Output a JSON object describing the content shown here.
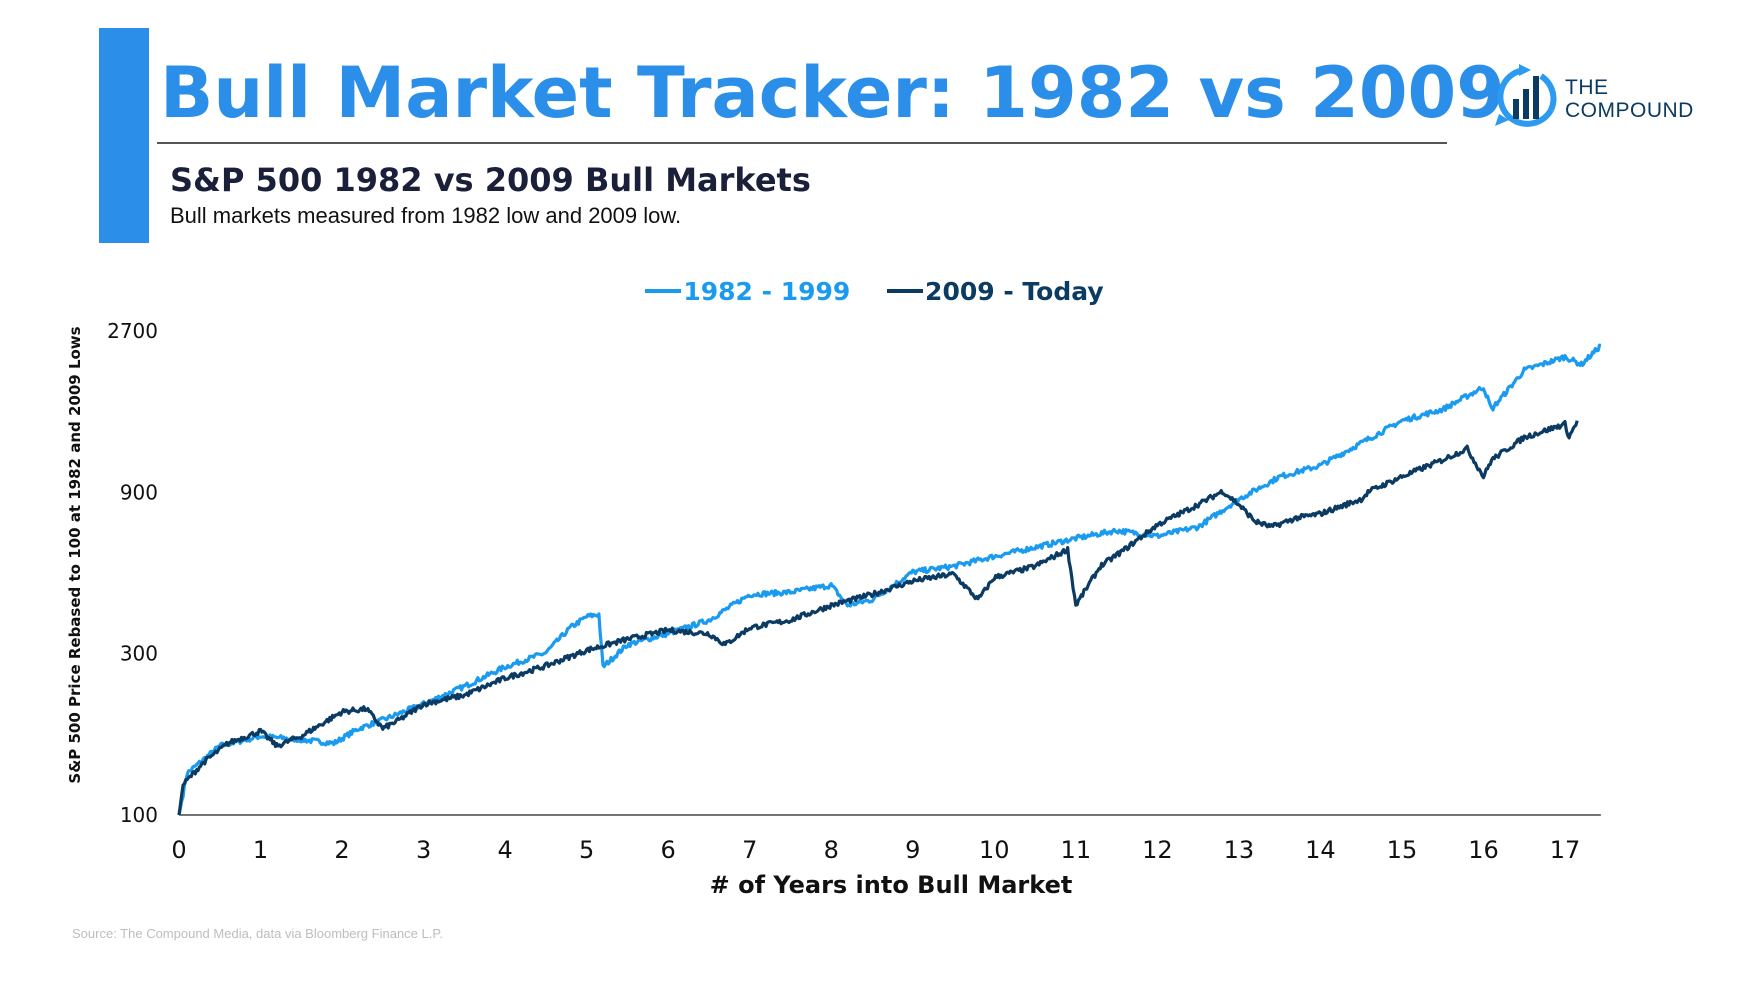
{
  "header": {
    "title": "Bull Market Tracker: 1982 vs 2009",
    "subtitle": "S&P 500 1982 vs 2009 Bull Markets",
    "description": "Bull markets measured from 1982 low and 2009 low.",
    "accent_color": "#2b8ee8"
  },
  "logo": {
    "line1": "THE",
    "line2": "COMPOUND",
    "icon": "chart-bars-circular-arrow-icon"
  },
  "footer": {
    "source": "Source: The Compound Media, data via Bloomberg Finance L.P."
  },
  "chart_data": {
    "type": "line",
    "title": "S&P 500 1982 vs 2009 Bull Markets",
    "xlabel": "# of Years into Bull Market",
    "ylabel": "S&P 500 Price Rebased to 100 at 1982 and 2009 Lows",
    "xlim": [
      0,
      17.44
    ],
    "ylim": [
      100,
      2700
    ],
    "yscale": "log",
    "x_ticks": [
      "0",
      "1",
      "2",
      "3",
      "4",
      "5",
      "6",
      "7",
      "8",
      "9",
      "10",
      "11",
      "12",
      "13",
      "14",
      "15",
      "16",
      "17"
    ],
    "y_ticks": [
      "100",
      "300",
      "900",
      "2700"
    ],
    "grid": false,
    "legend": "top-center",
    "series": [
      {
        "name": "1982 - 1999",
        "color": "#1a9bf0",
        "x": [
          0,
          0.1,
          0.5,
          1.0,
          1.5,
          1.9,
          2.2,
          2.5,
          3.0,
          3.5,
          4.0,
          4.5,
          4.8,
          5.0,
          5.15,
          5.2,
          5.5,
          6.0,
          6.5,
          7.0,
          7.5,
          8.0,
          8.2,
          8.5,
          9.0,
          9.5,
          10.0,
          10.5,
          11.0,
          11.5,
          12.0,
          12.5,
          13.0,
          13.5,
          14.0,
          14.5,
          15.0,
          15.5,
          16.0,
          16.1,
          16.5,
          17.0,
          17.2,
          17.44
        ],
        "y": [
          100,
          133,
          160,
          171,
          167,
          163,
          180,
          191,
          213,
          240,
          274,
          302,
          358,
          386,
          392,
          274,
          319,
          344,
          377,
          449,
          456,
          478,
          417,
          433,
          523,
          544,
          582,
          619,
          658,
          694,
          668,
          711,
          859,
          1001,
          1081,
          1259,
          1466,
          1583,
          1843,
          1583,
          2067,
          2265,
          2148,
          2446
        ]
      },
      {
        "name": "2009 - Today",
        "color": "#0b3a63",
        "x": [
          0,
          0.05,
          0.3,
          0.6,
          1.0,
          1.2,
          1.5,
          2.0,
          2.3,
          2.5,
          2.7,
          3.0,
          3.5,
          4.0,
          4.5,
          5.0,
          5.5,
          6.0,
          6.5,
          6.7,
          7.0,
          7.5,
          8.0,
          8.5,
          9.0,
          9.5,
          9.8,
          10.0,
          10.5,
          10.9,
          11.0,
          11.3,
          11.6,
          12.0,
          12.5,
          12.8,
          13.0,
          13.2,
          13.4,
          13.7,
          14.0,
          14.5,
          14.6,
          15.0,
          15.5,
          15.8,
          16.0,
          16.1,
          16.5,
          17.0,
          17.05,
          17.15
        ],
        "y": [
          100,
          123,
          143,
          163,
          177,
          160,
          171,
          202,
          206,
          180,
          191,
          213,
          226,
          254,
          276,
          307,
          331,
          352,
          344,
          319,
          358,
          377,
          417,
          449,
          492,
          516,
          433,
          504,
          544,
          610,
          417,
          544,
          610,
          721,
          828,
          907,
          828,
          738,
          711,
          755,
          778,
          859,
          907,
          1001,
          1123,
          1212,
          1001,
          1123,
          1308,
          1433,
          1308,
          1466
        ]
      }
    ]
  }
}
